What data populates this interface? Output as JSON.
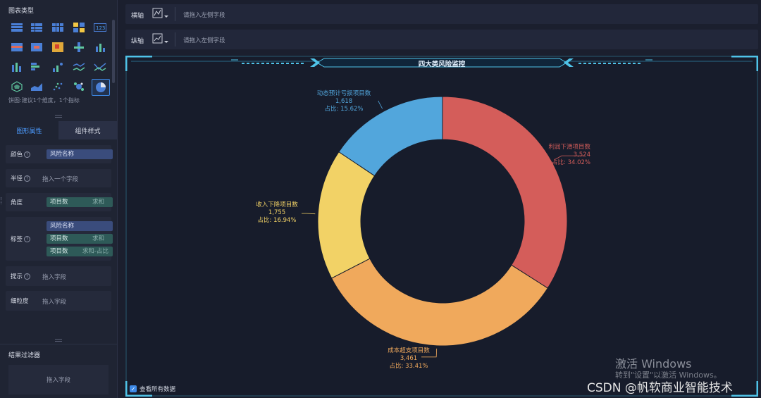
{
  "left_panel": {
    "chart_type_title": "图表类型",
    "chart_hint": "饼图:建议1个维度，1个指标",
    "tabs": [
      "图形属性",
      "组件样式"
    ],
    "props": {
      "color_label": "颜色",
      "color_field": "风险名称",
      "radius_label": "半径",
      "radius_placeholder": "拖入一个字段",
      "angle_label": "角度",
      "angle_field": "项目数",
      "angle_agg": "求和",
      "label_label": "标签",
      "label_field1": "风险名称",
      "label_field2": "项目数",
      "label_field2_agg": "求和",
      "label_field3": "项目数",
      "label_field3_agg": "求和-占比",
      "tooltip_label": "提示",
      "tooltip_placeholder": "拖入字段",
      "granularity_label": "细粒度",
      "granularity_placeholder": "拖入字段"
    },
    "filter_title": "结果过滤器",
    "filter_placeholder": "拖入字段"
  },
  "axes": {
    "x_label": "横轴",
    "x_placeholder": "请拖入左侧字段",
    "y_label": "纵轴",
    "y_placeholder": "请拖入左侧字段"
  },
  "chart_title": "四大类风险监控",
  "show_all_label": "查看所有数据",
  "chart_data": {
    "type": "pie",
    "title": "四大类风险监控",
    "slices": [
      {
        "name": "利润下滑项目数",
        "value": 3524,
        "value_text": "3,524",
        "share_text": "占比: 34.02%",
        "color": "#d45d5a"
      },
      {
        "name": "成本超支项目数",
        "value": 3461,
        "value_text": "3,461",
        "share_text": "占比: 33.41%",
        "color": "#f0a95c"
      },
      {
        "name": "收入下降项目数",
        "value": 1755,
        "value_text": "1,755",
        "share_text": "占比: 16.94%",
        "color": "#f2d266"
      },
      {
        "name": "动态预计亏损项目数",
        "value": 1618,
        "value_text": "1,618",
        "share_text": "占比: 15.62%",
        "color": "#52a6dc"
      }
    ]
  },
  "watermark": {
    "line1": "激活 Windows",
    "line2": "转到\"设置\"以激活 Windows。",
    "csdn": "CSDN @帆软商业智能技术"
  },
  "colors": {
    "accent": "#3e8ae8",
    "frame": "#4fc3e8"
  }
}
